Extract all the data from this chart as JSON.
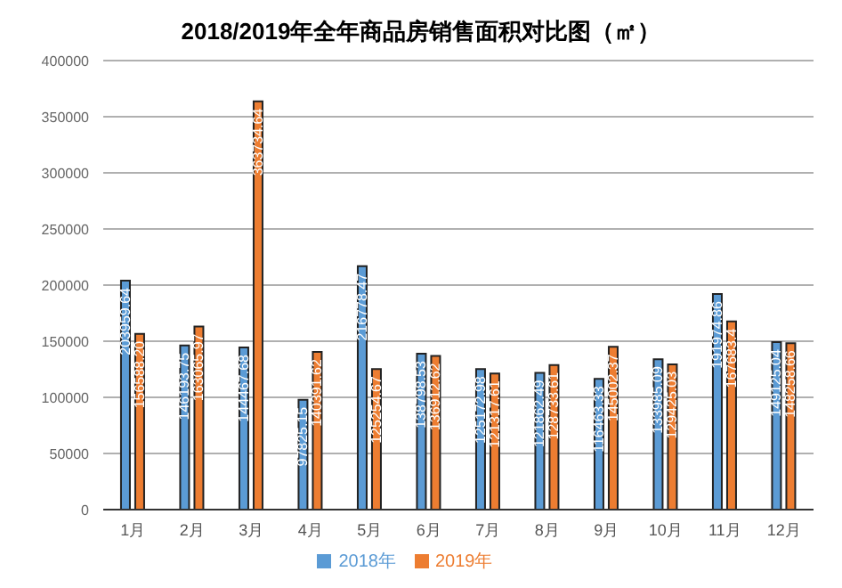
{
  "chart_data": {
    "type": "bar",
    "title": "2018/2019年全年商品房销售面积对比图（㎡）",
    "categories": [
      "1月",
      "2月",
      "3月",
      "4月",
      "5月",
      "6月",
      "7月",
      "8月",
      "9月",
      "10月",
      "11月",
      "12月"
    ],
    "series": [
      {
        "name": "2018年",
        "color": "#5b9bd5",
        "values": [
          203959.64,
          146193.75,
          144467.68,
          97825.15,
          216778.47,
          138798.53,
          125172.98,
          121862.49,
          116463.33,
          133985.09,
          191974.86,
          149125.04
        ],
        "value_labels": [
          "203959.64",
          "146193.75",
          "144467.68",
          "97825.15",
          "216778.47",
          "138798.53",
          "125172.98",
          "121862.49",
          "116463.33",
          "133985.09",
          "191974.86",
          "149125.04"
        ]
      },
      {
        "name": "2019年",
        "color": "#ed7d31",
        "values": [
          156588.2,
          163065.97,
          363734.64,
          140391.62,
          125254.67,
          136912.62,
          121317.61,
          128733.61,
          145002.37,
          129425.03,
          167683.4,
          148258.66
        ],
        "value_labels": [
          "156588.20",
          "163065.97",
          "363734.64",
          "140391.62",
          "125254.67",
          "136912.62",
          "121317.61",
          "128733.61",
          "145002.37",
          "129425.03",
          "167683.4",
          "148258.66"
        ]
      }
    ],
    "ylim": [
      0,
      400000
    ],
    "yticks": [
      0,
      50000,
      100000,
      150000,
      200000,
      250000,
      300000,
      350000,
      400000
    ],
    "grid": "y",
    "legend": "bottom"
  }
}
